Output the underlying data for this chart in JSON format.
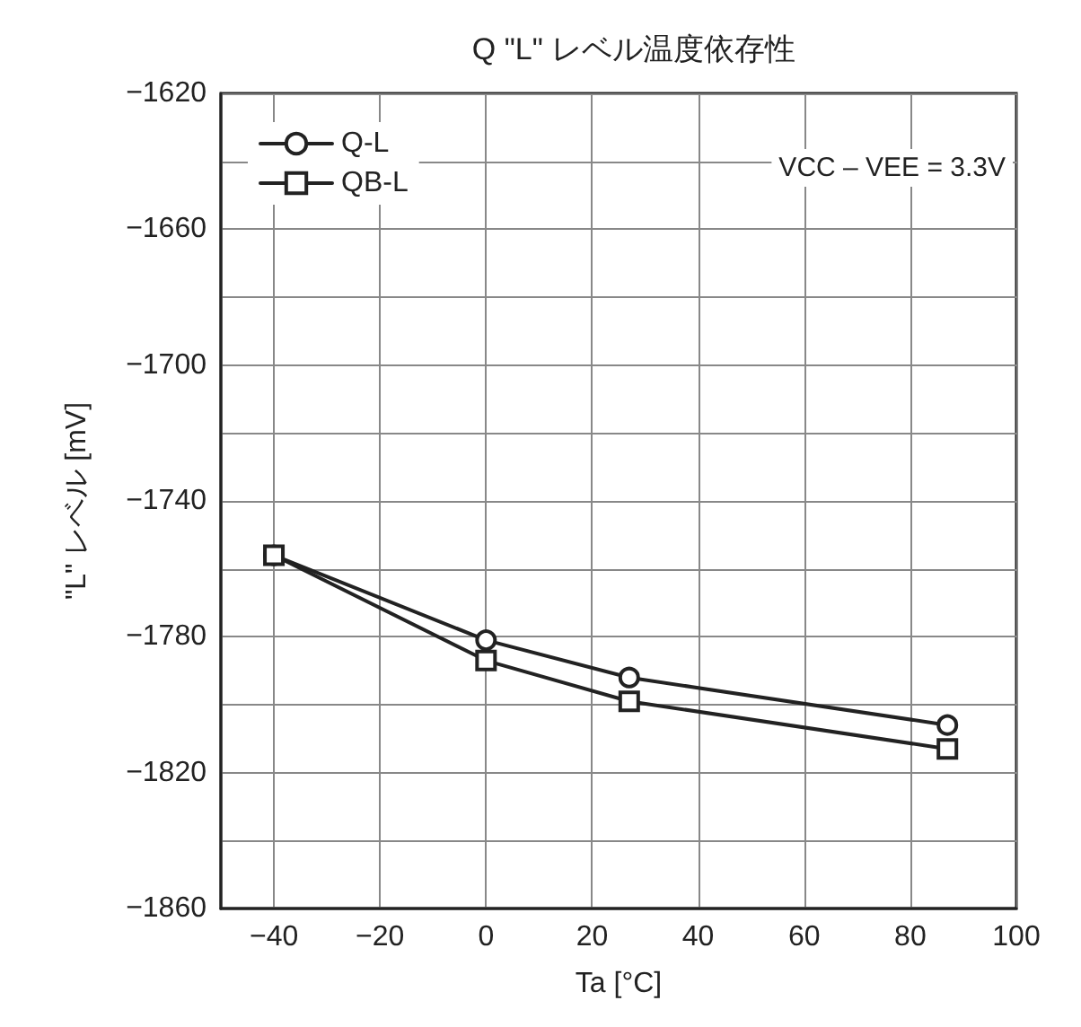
{
  "chart_data": {
    "type": "line",
    "title": "Q \"L\" レベル温度依存性",
    "xlabel": "Ta [°C]",
    "ylabel": "\"L\" レベル [mV]",
    "x": [
      -40,
      0,
      27,
      87
    ],
    "series": [
      {
        "name": "Q-L",
        "color": "#222222",
        "marker": "circle",
        "values": [
          -1756,
          -1781,
          -1792,
          -1806
        ]
      },
      {
        "name": "QB-L",
        "color": "#222222",
        "marker": "square",
        "values": [
          -1756,
          -1787,
          -1799,
          -1813
        ]
      }
    ],
    "xlim": [
      -50,
      100
    ],
    "xticks": [
      -40,
      -20,
      0,
      20,
      40,
      60,
      80,
      100
    ],
    "ylim": [
      -1860,
      -1620
    ],
    "yticks": [
      -1860,
      {
        "value": -1840,
        "label": null
      },
      -1820,
      {
        "value": -1800,
        "label": null
      },
      -1780,
      {
        "value": -1760,
        "label": null
      },
      -1740,
      {
        "value": -1720,
        "label": null
      },
      -1700,
      {
        "value": -1680,
        "label": null
      },
      -1660,
      {
        "value": -1640,
        "label": null
      },
      -1620
    ],
    "annotations": [
      "VCC – VEE = 3.3V"
    ],
    "grid": true,
    "legend": "top left",
    "line_style": "solid"
  }
}
